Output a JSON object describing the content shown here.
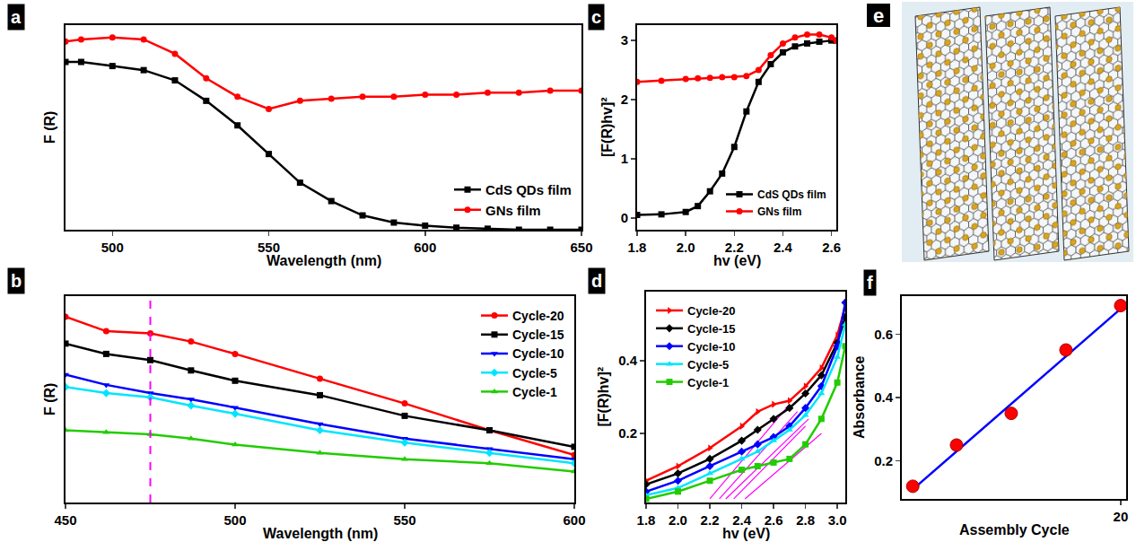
{
  "chart_data": [
    {
      "type": "line",
      "title": "a",
      "x_label": "Wavelength (nm)",
      "y_label": "F (R)",
      "xlim": [
        485,
        650
      ],
      "xticks": [
        500,
        550,
        600,
        650
      ],
      "ylim": [
        0,
        1
      ],
      "tick_labels": "x",
      "legend": "lower right",
      "x": [
        485,
        490,
        500,
        510,
        520,
        530,
        540,
        550,
        560,
        570,
        580,
        590,
        600,
        610,
        620,
        630,
        640,
        650
      ],
      "series": [
        {
          "name": "CdS QDs film",
          "color": "#000000",
          "marker": "square",
          "line_style": "solid",
          "values": [
            0.82,
            0.82,
            0.8,
            0.78,
            0.73,
            0.63,
            0.51,
            0.37,
            0.23,
            0.14,
            0.07,
            0.035,
            0.02,
            0.01,
            0.005,
            0,
            0,
            0
          ]
        },
        {
          "name": "GNs film",
          "color": "#ff0000",
          "marker": "circle",
          "line_style": "solid",
          "values": [
            0.92,
            0.93,
            0.94,
            0.93,
            0.86,
            0.74,
            0.65,
            0.59,
            0.63,
            0.64,
            0.65,
            0.65,
            0.66,
            0.66,
            0.67,
            0.67,
            0.68,
            0.68
          ]
        }
      ]
    },
    {
      "type": "line",
      "title": "b",
      "x_label": "Wavelength (nm)",
      "y_label": "F (R)",
      "xlim": [
        450,
        600
      ],
      "xticks": [
        450,
        500,
        550,
        600
      ],
      "ylim": [
        0,
        1
      ],
      "tick_labels": "x",
      "legend": "upper right",
      "reference_line": {
        "x": 475,
        "color": "#ff00ff",
        "line_style": "dash"
      },
      "x": [
        450,
        462,
        475,
        487,
        500,
        525,
        550,
        575,
        600
      ],
      "series": [
        {
          "name": "Cycle-20",
          "color": "#ff0000",
          "marker": "circle",
          "line_style": "solid",
          "values": [
            0.9,
            0.83,
            0.82,
            0.78,
            0.72,
            0.6,
            0.48,
            0.35,
            0.23
          ]
        },
        {
          "name": "Cycle-15",
          "color": "#000000",
          "marker": "square",
          "line_style": "solid",
          "values": [
            0.77,
            0.72,
            0.69,
            0.64,
            0.59,
            0.52,
            0.42,
            0.35,
            0.27
          ]
        },
        {
          "name": "Cycle-10",
          "color": "#0000ff",
          "marker": "triangle-down",
          "line_style": "solid",
          "values": [
            0.62,
            0.57,
            0.53,
            0.5,
            0.46,
            0.38,
            0.31,
            0.26,
            0.21
          ]
        },
        {
          "name": "Cycle-5",
          "color": "#00e5ff",
          "marker": "diamond",
          "line_style": "solid",
          "values": [
            0.56,
            0.53,
            0.51,
            0.47,
            0.43,
            0.35,
            0.29,
            0.24,
            0.19
          ]
        },
        {
          "name": "Cycle-1",
          "color": "#22cc00",
          "marker": "triangle-up",
          "line_style": "solid",
          "values": [
            0.35,
            0.34,
            0.33,
            0.31,
            0.28,
            0.24,
            0.21,
            0.19,
            0.15
          ]
        }
      ]
    },
    {
      "type": "line",
      "title": "c",
      "x_label": "hv (eV)",
      "y_label": "[F(R)hv]²",
      "xlim": [
        1.8,
        2.62
      ],
      "xticks": [
        1.8,
        {
          "value": 2,
          "label": "2.0"
        },
        2.2,
        2.4,
        2.6
      ],
      "ylim": [
        -0.2,
        3.26
      ],
      "yticks": [
        0,
        1,
        2,
        3
      ],
      "legend": "lower right",
      "x": [
        1.8,
        1.9,
        2.0,
        2.05,
        2.1,
        2.15,
        2.2,
        2.25,
        2.3,
        2.35,
        2.4,
        2.45,
        2.5,
        2.55,
        2.6,
        2.62
      ],
      "series": [
        {
          "name": "CdS QDs film",
          "color": "#000000",
          "marker": "square",
          "line_style": "solid",
          "values": [
            0.05,
            0.06,
            0.1,
            0.2,
            0.45,
            0.75,
            1.2,
            1.8,
            2.3,
            2.6,
            2.8,
            2.9,
            2.95,
            2.98,
            3.0,
            3.0
          ]
        },
        {
          "name": "GNs film",
          "color": "#ff0000",
          "marker": "circle",
          "line_style": "solid",
          "values": [
            2.3,
            2.32,
            2.35,
            2.36,
            2.37,
            2.38,
            2.38,
            2.4,
            2.5,
            2.75,
            2.95,
            3.05,
            3.1,
            3.1,
            3.05,
            3.0
          ]
        }
      ]
    },
    {
      "type": "line",
      "title": "d",
      "x_label": "hv (eV)",
      "y_label": "[F(R)hv]²",
      "xlim": [
        1.8,
        3.05
      ],
      "xticks": [
        1.8,
        {
          "value": 2,
          "label": "2.0"
        },
        2.2,
        2.4,
        2.6,
        2.8,
        {
          "value": 3,
          "label": "3.0"
        }
      ],
      "ylim": [
        0.01,
        0.59
      ],
      "yticks": [
        0.2,
        0.4
      ],
      "legend": "upper left",
      "tangent_lines": {
        "color": "#ff00ff",
        "line_style": "solid",
        "lines": [
          {
            "x": [
              2.2,
              2.7
            ],
            "values": [
              0.02,
              0.28
            ]
          },
          {
            "x": [
              2.26,
              2.75
            ],
            "values": [
              0.02,
              0.26
            ]
          },
          {
            "x": [
              2.3,
              2.82
            ],
            "values": [
              0.02,
              0.24
            ]
          },
          {
            "x": [
              2.35,
              2.8
            ],
            "values": [
              0.02,
              0.22
            ]
          },
          {
            "x": [
              2.42,
              2.9
            ],
            "values": [
              0.02,
              0.2
            ]
          }
        ]
      },
      "x": [
        1.8,
        2.0,
        2.2,
        2.4,
        2.5,
        2.6,
        2.7,
        2.8,
        2.9,
        3.0,
        3.05
      ],
      "series": [
        {
          "name": "Cycle-20",
          "color": "#ff0000",
          "marker": "triangle-right",
          "line_style": "solid",
          "values": [
            0.07,
            0.11,
            0.16,
            0.22,
            0.26,
            0.28,
            0.29,
            0.33,
            0.38,
            0.47,
            0.55
          ]
        },
        {
          "name": "Cycle-15",
          "color": "#000000",
          "marker": "diamond",
          "line_style": "solid",
          "values": [
            0.06,
            0.09,
            0.13,
            0.18,
            0.21,
            0.24,
            0.27,
            0.31,
            0.36,
            0.45,
            0.52
          ]
        },
        {
          "name": "Cycle-10",
          "color": "#0000ff",
          "marker": "diamond",
          "line_style": "solid",
          "values": [
            0.04,
            0.07,
            0.11,
            0.15,
            0.17,
            0.19,
            0.22,
            0.27,
            0.33,
            0.44,
            0.56
          ]
        },
        {
          "name": "Cycle-5",
          "color": "#00e5ff",
          "marker": "triangle-up",
          "line_style": "solid",
          "values": [
            0.03,
            0.05,
            0.09,
            0.13,
            0.15,
            0.18,
            0.21,
            0.25,
            0.31,
            0.41,
            0.5
          ]
        },
        {
          "name": "Cycle-1",
          "color": "#22cc00",
          "marker": "square",
          "line_style": "solid",
          "values": [
            0.02,
            0.04,
            0.07,
            0.1,
            0.11,
            0.12,
            0.13,
            0.17,
            0.24,
            0.34,
            0.44
          ]
        }
      ]
    },
    {
      "type": "scatter",
      "title": "f",
      "x_label": "Assembly Cycle",
      "y_label": "Absorbance",
      "xlim": [
        0,
        20.5
      ],
      "xticks": [
        20
      ],
      "ylim": [
        0.08,
        0.72
      ],
      "yticks": [
        0.2,
        0.4,
        0.6
      ],
      "x": [
        1,
        5,
        10,
        15,
        20
      ],
      "values": [
        0.12,
        0.25,
        0.35,
        0.55,
        0.69
      ],
      "color": "#ff0000",
      "marker": "circle",
      "fit_line": {
        "x": [
          1,
          20
        ],
        "values": [
          0.11,
          0.68
        ],
        "color": "#0000ff",
        "line_style": "solid"
      }
    }
  ],
  "diagram": {
    "title": "e"
  }
}
